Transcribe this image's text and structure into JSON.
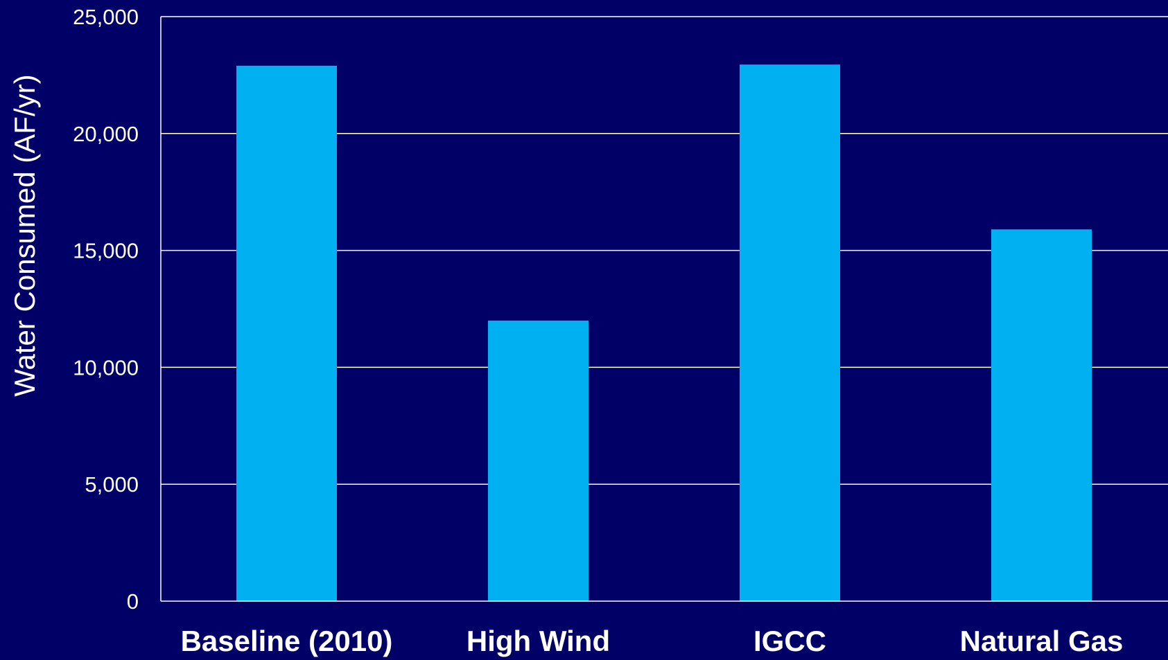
{
  "chart_data": {
    "type": "bar",
    "categories": [
      "Baseline (2010)",
      "High Wind",
      "IGCC",
      "Natural Gas"
    ],
    "values": [
      22900,
      12000,
      22950,
      15900
    ],
    "title": "",
    "xlabel": "",
    "ylabel": "Water Consumed (AF/yr)",
    "ylim": [
      0,
      25000
    ],
    "yticks": [
      0,
      5000,
      10000,
      15000,
      20000,
      25000
    ],
    "ytick_labels": [
      "0",
      "5,000",
      "10,000",
      "15,000",
      "20,000",
      "25,000"
    ],
    "grid": true,
    "legend": "none",
    "colors": {
      "background": "#000066",
      "bar": "#00B0F0",
      "grid": "#FFFFFF",
      "text": "#FFFFFF"
    }
  }
}
